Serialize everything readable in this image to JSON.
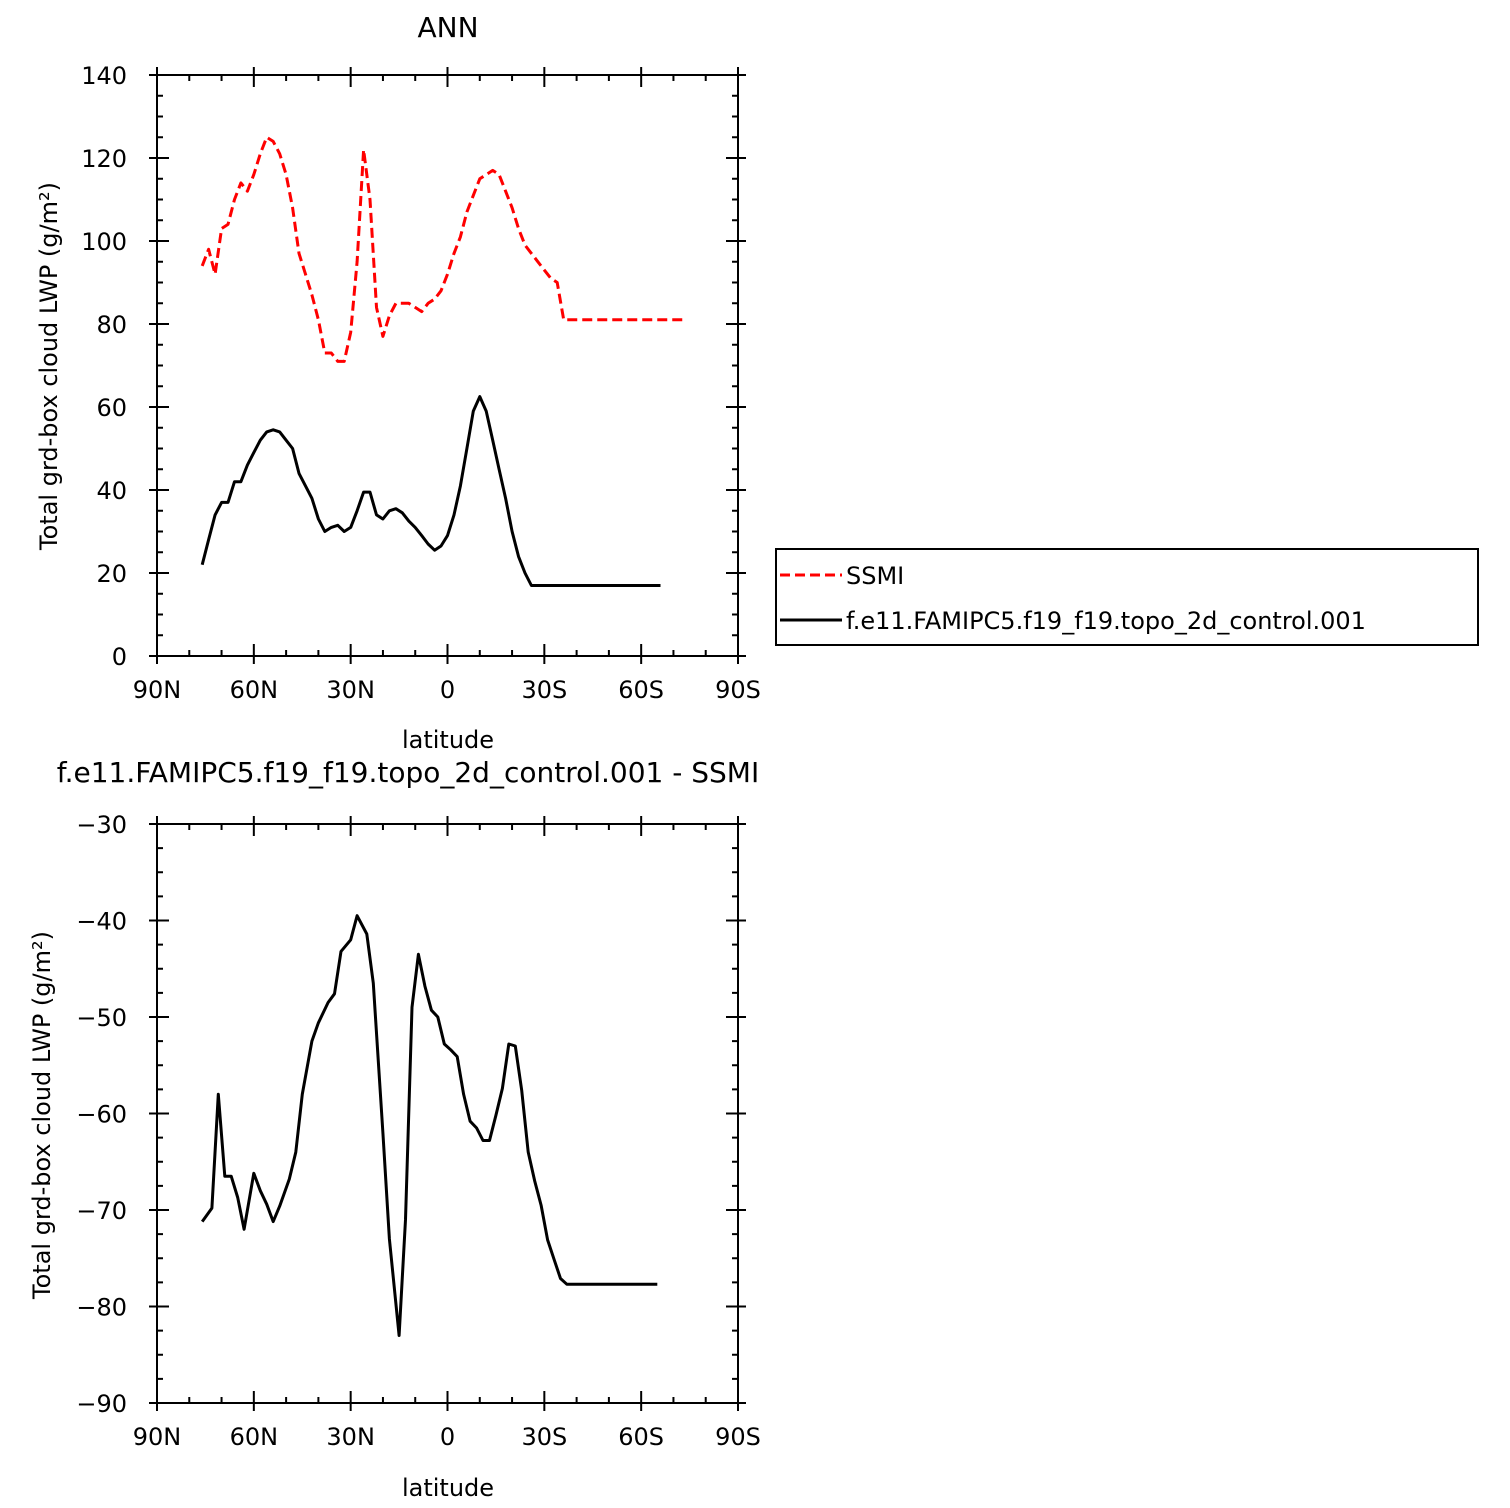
{
  "colors": {
    "ssmi": "#ff0000",
    "model": "#000000"
  },
  "chart_data": [
    {
      "type": "line",
      "title": "ANN",
      "xlabel": "latitude",
      "ylabel": "Total grd-box cloud LWP (g/m²)",
      "xlim": [
        -90,
        90
      ],
      "ylim": [
        0,
        140
      ],
      "xticks": [
        -90,
        -60,
        -30,
        0,
        30,
        60,
        90
      ],
      "xtick_labels": [
        "90N",
        "60N",
        "30N",
        "0",
        "30S",
        "60S",
        "90S"
      ],
      "yticks": [
        0,
        20,
        40,
        60,
        80,
        100,
        120,
        140
      ],
      "ytick_labels": [
        "0",
        "20",
        "40",
        "60",
        "80",
        "100",
        "120",
        "140"
      ],
      "legend_position": "right",
      "series": [
        {
          "name": "SSMI",
          "style": "dashed",
          "color": "#ff0000",
          "x": [
            -76,
            -74,
            -72,
            -70,
            -68,
            -66,
            -64,
            -62,
            -60,
            -58,
            -56,
            -54,
            -52,
            -50,
            -48,
            -46,
            -44,
            -42,
            -40,
            -38,
            -36,
            -34,
            -32,
            -30,
            -28,
            -26,
            -24,
            -22,
            -20,
            -18,
            -16,
            -14,
            -12,
            -10,
            -8,
            -6,
            -4,
            -2,
            0,
            2,
            4,
            6,
            8,
            10,
            12,
            14,
            16,
            18,
            20,
            22,
            24,
            26,
            28,
            30,
            32,
            34,
            36,
            38,
            40,
            42,
            44,
            46,
            48,
            50,
            52,
            54,
            56,
            58,
            60,
            62,
            64,
            66,
            68,
            70,
            72,
            74
          ],
          "y": [
            94,
            98,
            92,
            103,
            104,
            110,
            114,
            112,
            116,
            121,
            125,
            124,
            121,
            116,
            108,
            97,
            92,
            87,
            81,
            73,
            73,
            71,
            71,
            78,
            95,
            122,
            110,
            84,
            77,
            82,
            85,
            85,
            85,
            84,
            83,
            85,
            86,
            88,
            92,
            97,
            101,
            107,
            111,
            115,
            116,
            117,
            116,
            112,
            108,
            103,
            99,
            97,
            95,
            93,
            91,
            90,
            81,
            81,
            81,
            81,
            81,
            81,
            81,
            81,
            81,
            81,
            81,
            81,
            81,
            81,
            81,
            81,
            81,
            81,
            81,
            81
          ]
        },
        {
          "name": "f.e11.FAMIPC5.f19_f19.topo_2d_control.001",
          "style": "solid",
          "color": "#000000",
          "x": [
            -76,
            -74,
            -72,
            -70,
            -68,
            -66,
            -64,
            -62,
            -60,
            -58,
            -56,
            -54,
            -52,
            -50,
            -48,
            -46,
            -44,
            -42,
            -40,
            -38,
            -36,
            -34,
            -32,
            -30,
            -28,
            -26,
            -24,
            -22,
            -20,
            -18,
            -16,
            -14,
            -12,
            -10,
            -8,
            -6,
            -4,
            -2,
            0,
            2,
            4,
            6,
            8,
            10,
            12,
            14,
            16,
            18,
            20,
            22,
            24,
            26,
            28,
            30,
            32,
            34,
            36,
            38,
            40,
            42,
            44,
            46,
            48,
            50,
            52,
            54,
            56,
            58,
            60,
            62,
            64,
            66
          ],
          "y": [
            22,
            28,
            34,
            37,
            37,
            42,
            42,
            46,
            49,
            52,
            54,
            54.5,
            54,
            52,
            50,
            44,
            41,
            38,
            33,
            30,
            31,
            31.5,
            30,
            31,
            35,
            39.5,
            39.5,
            34,
            33,
            35,
            35.5,
            34.5,
            32.5,
            31,
            29,
            27,
            25.5,
            26.5,
            29,
            34,
            41,
            50,
            59,
            62.5,
            59,
            52,
            45,
            38,
            30,
            24,
            20,
            17,
            17,
            17,
            17,
            17,
            17,
            17,
            17,
            17,
            17,
            17,
            17,
            17,
            17,
            17,
            17,
            17,
            17,
            17,
            17,
            17
          ]
        }
      ]
    },
    {
      "type": "line",
      "title": "f.e11.FAMIPC5.f19_f19.topo_2d_control.001 - SSMI",
      "xlabel": "latitude",
      "ylabel": "Total grd-box cloud LWP (g/m²)",
      "xlim": [
        -90,
        90
      ],
      "ylim": [
        -90,
        -30
      ],
      "xticks": [
        -90,
        -60,
        -30,
        0,
        30,
        60,
        90
      ],
      "xtick_labels": [
        "90N",
        "60N",
        "30N",
        "0",
        "30S",
        "60S",
        "90S"
      ],
      "yticks": [
        -90,
        -80,
        -70,
        -60,
        -50,
        -40,
        -30
      ],
      "ytick_labels": [
        "−90",
        "−80",
        "−70",
        "−60",
        "−50",
        "−40",
        "−30"
      ],
      "series": [
        {
          "style": "solid",
          "color": "#000000",
          "x": [
            -76,
            -73,
            -71,
            -69,
            -67,
            -65,
            -63,
            -60,
            -58,
            -56,
            -54,
            -52,
            -49,
            -47,
            -45,
            -42,
            -40,
            -37,
            -35,
            -33,
            -30,
            -28,
            -25,
            -23,
            -20,
            -18,
            -15,
            -13,
            -11,
            -9,
            -7,
            -5,
            -3,
            -1,
            1,
            3,
            5,
            7,
            9,
            11,
            13,
            15,
            17,
            19,
            21,
            23,
            25,
            27,
            29,
            31,
            33,
            35,
            37,
            39,
            41,
            43,
            45,
            47,
            49,
            51,
            53,
            55,
            57,
            59,
            61,
            63,
            65
          ],
          "y": [
            -71.2,
            -69.8,
            -58,
            -66.5,
            -66.5,
            -68.7,
            -72,
            -66.2,
            -68.0,
            -69.4,
            -71.2,
            -69.6,
            -66.8,
            -64.0,
            -58.0,
            -52.5,
            -50.6,
            -48.5,
            -47.6,
            -43.2,
            -42.0,
            -39.5,
            -41.4,
            -46.5,
            -62.0,
            -73.0,
            -83.0,
            -71.0,
            -49.0,
            -43.5,
            -46.8,
            -49.3,
            -50.0,
            -52.8,
            -53.4,
            -54.1,
            -58.0,
            -60.8,
            -61.5,
            -62.8,
            -62.8,
            -60.2,
            -57.4,
            -52.8,
            -53.0,
            -57.6,
            -64.0,
            -67.0,
            -69.5,
            -73.1,
            -75.1,
            -77.1,
            -77.7,
            -77.7,
            -77.7,
            -77.7,
            -77.7,
            -77.7,
            -77.7,
            -77.7,
            -77.7,
            -77.7,
            -77.7,
            -77.7,
            -77.7,
            -77.7,
            -77.7
          ]
        }
      ]
    }
  ]
}
